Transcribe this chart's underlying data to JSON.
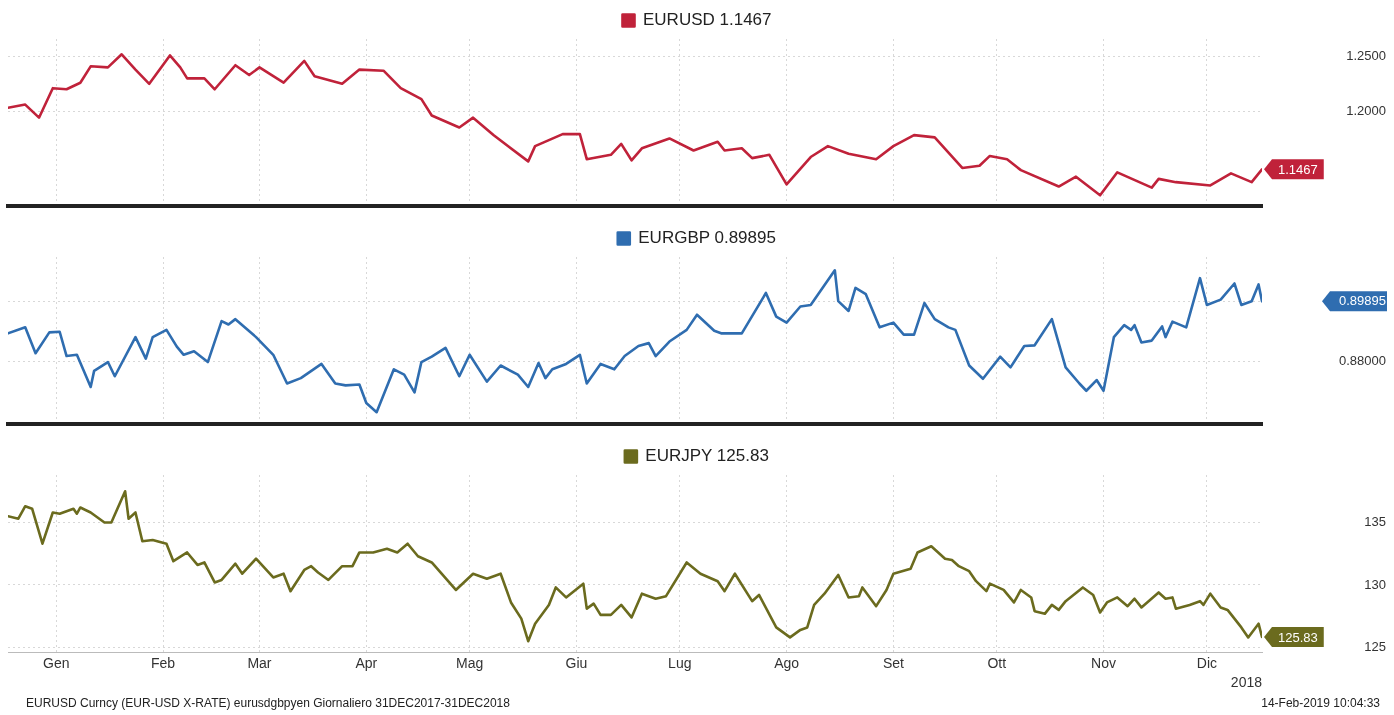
{
  "chart_data": [
    {
      "type": "line",
      "legend": "top",
      "grid": true,
      "tick_labels": "y",
      "x": [
        "2018-01-01",
        "2018-01-06",
        "2018-01-10",
        "2018-01-14",
        "2018-01-18",
        "2018-01-22",
        "2018-01-25",
        "2018-01-30",
        "2018-02-03",
        "2018-02-07",
        "2018-02-11",
        "2018-02-17",
        "2018-02-20",
        "2018-02-22",
        "2018-02-27",
        "2018-03-02",
        "2018-03-08",
        "2018-03-12",
        "2018-03-15",
        "2018-03-22",
        "2018-03-28",
        "2018-03-31",
        "2018-04-08",
        "2018-04-13",
        "2018-04-20",
        "2018-04-25",
        "2018-05-01",
        "2018-05-04",
        "2018-05-12",
        "2018-05-16",
        "2018-05-22",
        "2018-06-01",
        "2018-06-03",
        "2018-06-11",
        "2018-06-16",
        "2018-06-18",
        "2018-06-25",
        "2018-06-28",
        "2018-07-01",
        "2018-07-04",
        "2018-07-12",
        "2018-07-19",
        "2018-07-26",
        "2018-07-28",
        "2018-08-02",
        "2018-08-05",
        "2018-08-10",
        "2018-08-15",
        "2018-08-22",
        "2018-08-27",
        "2018-09-02",
        "2018-09-10",
        "2018-09-15",
        "2018-09-21",
        "2018-09-27",
        "2018-10-05",
        "2018-10-10",
        "2018-10-13",
        "2018-10-18",
        "2018-10-22",
        "2018-11-02",
        "2018-11-07",
        "2018-11-14",
        "2018-11-19",
        "2018-11-29",
        "2018-12-01",
        "2018-12-06",
        "2018-12-16",
        "2018-12-22",
        "2018-12-28",
        "2018-12-31"
      ],
      "series": [
        {
          "name": "EURUSD 1.1467",
          "color": "#c0223a",
          "values": [
            1.203,
            1.206,
            1.194,
            1.221,
            1.22,
            1.226,
            1.241,
            1.24,
            1.252,
            1.238,
            1.225,
            1.251,
            1.24,
            1.23,
            1.23,
            1.22,
            1.242,
            1.233,
            1.24,
            1.226,
            1.246,
            1.232,
            1.225,
            1.238,
            1.237,
            1.221,
            1.211,
            1.196,
            1.185,
            1.194,
            1.178,
            1.154,
            1.168,
            1.179,
            1.179,
            1.156,
            1.16,
            1.17,
            1.155,
            1.166,
            1.175,
            1.164,
            1.172,
            1.164,
            1.166,
            1.157,
            1.16,
            1.133,
            1.158,
            1.168,
            1.161,
            1.156,
            1.168,
            1.178,
            1.176,
            1.148,
            1.15,
            1.159,
            1.156,
            1.146,
            1.131,
            1.14,
            1.123,
            1.144,
            1.13,
            1.138,
            1.135,
            1.132,
            1.143,
            1.135,
            1.1467
          ],
          "value_labels": [
            null,
            null,
            null,
            null,
            null,
            null,
            null,
            null,
            null,
            null,
            null,
            null,
            null,
            null,
            null,
            null,
            null,
            null,
            null,
            null,
            null,
            null,
            null,
            null,
            null,
            null,
            null,
            null,
            null,
            null,
            null,
            null,
            null,
            null,
            null,
            null,
            null,
            null,
            null,
            null,
            null,
            null,
            null,
            null,
            null,
            null,
            null,
            null,
            null,
            null,
            null,
            null,
            null,
            null,
            null,
            null,
            null,
            null,
            null,
            null,
            null,
            null,
            null,
            null,
            null,
            null,
            null,
            null,
            null,
            null,
            "1.1467"
          ]
        }
      ],
      "xlim": [
        "2018-01-01",
        "2018-12-31"
      ],
      "xticks": [
        {
          "value": "2018-01-15",
          "label": null
        },
        {
          "value": "2018-02-15",
          "label": null
        },
        {
          "value": "2018-03-15",
          "label": null
        },
        {
          "value": "2018-04-15",
          "label": null
        },
        {
          "value": "2018-05-15",
          "label": null
        },
        {
          "value": "2018-06-15",
          "label": null
        },
        {
          "value": "2018-07-15",
          "label": null
        },
        {
          "value": "2018-08-15",
          "label": null
        },
        {
          "value": "2018-09-15",
          "label": null
        },
        {
          "value": "2018-10-15",
          "label": null
        },
        {
          "value": "2018-11-15",
          "label": null
        },
        {
          "value": "2018-12-15",
          "label": null
        }
      ],
      "ylim": [
        1.113,
        1.266
      ],
      "yticks": [
        {
          "value": 1.2,
          "label": "1.2000"
        },
        {
          "value": 1.25,
          "label": "1.2500"
        }
      ]
    },
    {
      "type": "line",
      "legend": "top",
      "grid": true,
      "tick_labels": "y",
      "x": [
        "2018-01-01",
        "2018-01-06",
        "2018-01-09",
        "2018-01-13",
        "2018-01-16",
        "2018-01-18",
        "2018-01-21",
        "2018-01-25",
        "2018-01-26",
        "2018-01-30",
        "2018-02-01",
        "2018-02-07",
        "2018-02-10",
        "2018-02-12",
        "2018-02-16",
        "2018-02-19",
        "2018-02-21",
        "2018-02-24",
        "2018-02-28",
        "2018-03-04",
        "2018-03-06",
        "2018-03-08",
        "2018-03-14",
        "2018-03-19",
        "2018-03-23",
        "2018-03-27",
        "2018-04-02",
        "2018-04-06",
        "2018-04-09",
        "2018-04-13",
        "2018-04-15",
        "2018-04-18",
        "2018-04-23",
        "2018-04-26",
        "2018-04-29",
        "2018-05-01",
        "2018-05-04",
        "2018-05-08",
        "2018-05-12",
        "2018-05-15",
        "2018-05-20",
        "2018-05-24",
        "2018-05-29",
        "2018-06-01",
        "2018-06-04",
        "2018-06-06",
        "2018-06-08",
        "2018-06-12",
        "2018-06-16",
        "2018-06-18",
        "2018-06-22",
        "2018-06-26",
        "2018-06-29",
        "2018-07-03",
        "2018-07-06",
        "2018-07-08",
        "2018-07-12",
        "2018-07-17",
        "2018-07-20",
        "2018-07-25",
        "2018-07-27",
        "2018-08-02",
        "2018-08-09",
        "2018-08-12",
        "2018-08-15",
        "2018-08-19",
        "2018-08-22",
        "2018-08-29",
        "2018-08-30",
        "2018-09-02",
        "2018-09-04",
        "2018-09-07",
        "2018-09-11",
        "2018-09-15",
        "2018-09-18",
        "2018-09-21",
        "2018-09-24",
        "2018-09-27",
        "2018-10-01",
        "2018-10-03",
        "2018-10-07",
        "2018-10-11",
        "2018-10-16",
        "2018-10-19",
        "2018-10-23",
        "2018-10-26",
        "2018-10-31",
        "2018-11-04",
        "2018-11-08",
        "2018-11-10",
        "2018-11-13",
        "2018-11-15",
        "2018-11-18",
        "2018-11-21",
        "2018-11-23",
        "2018-11-24",
        "2018-11-26",
        "2018-11-29",
        "2018-12-02",
        "2018-12-03",
        "2018-12-05",
        "2018-12-09",
        "2018-12-13",
        "2018-12-15",
        "2018-12-19",
        "2018-12-23",
        "2018-12-25",
        "2018-12-28",
        "2018-12-30",
        "2018-12-31"
      ],
      "series": [
        {
          "name": "EURGBP 0.89895",
          "color": "#2f6db0",
          "values": [
            0.8888,
            0.8907,
            0.8825,
            0.8891,
            0.8893,
            0.8816,
            0.882,
            0.8718,
            0.8769,
            0.8797,
            0.8752,
            0.8876,
            0.8808,
            0.8876,
            0.8899,
            0.8846,
            0.882,
            0.8831,
            0.8797,
            0.8927,
            0.8916,
            0.8933,
            0.8876,
            0.882,
            0.8729,
            0.8746,
            0.8791,
            0.8729,
            0.8723,
            0.8726,
            0.8667,
            0.8638,
            0.8774,
            0.8757,
            0.8701,
            0.8797,
            0.8814,
            0.8842,
            0.8752,
            0.882,
            0.8735,
            0.8786,
            0.8757,
            0.8718,
            0.8794,
            0.8746,
            0.8774,
            0.8791,
            0.882,
            0.8729,
            0.8791,
            0.8774,
            0.8816,
            0.8848,
            0.8857,
            0.8816,
            0.8862,
            0.8899,
            0.8947,
            0.8896,
            0.8888,
            0.8888,
            0.9016,
            0.8941,
            0.8922,
            0.8973,
            0.8978,
            0.9088,
            0.899,
            0.8959,
            0.9032,
            0.9012,
            0.8907,
            0.8922,
            0.8884,
            0.8884,
            0.8984,
            0.8933,
            0.8907,
            0.8899,
            0.8786,
            0.8744,
            0.8814,
            0.878,
            0.8848,
            0.885,
            0.8933,
            0.878,
            0.8729,
            0.8706,
            0.874,
            0.8706,
            0.8876,
            0.8914,
            0.8899,
            0.8914,
            0.8859,
            0.8865,
            0.891,
            0.8876,
            0.8925,
            0.8907,
            0.9063,
            0.8978,
            0.8995,
            0.9046,
            0.8978,
            0.899,
            0.9043,
            0.89895
          ]
        }
      ],
      "xlim": [
        "2018-01-01",
        "2018-12-31"
      ],
      "xticks": [
        {
          "value": "2018-01-15",
          "label": null
        },
        {
          "value": "2018-02-15",
          "label": null
        },
        {
          "value": "2018-03-15",
          "label": null
        },
        {
          "value": "2018-04-15",
          "label": null
        },
        {
          "value": "2018-05-15",
          "label": null
        },
        {
          "value": "2018-06-15",
          "label": null
        },
        {
          "value": "2018-07-15",
          "label": null
        },
        {
          "value": "2018-08-15",
          "label": null
        },
        {
          "value": "2018-09-15",
          "label": null
        },
        {
          "value": "2018-10-15",
          "label": null
        },
        {
          "value": "2018-11-15",
          "label": null
        },
        {
          "value": "2018-12-15",
          "label": null
        }
      ],
      "ylim": [
        0.86,
        0.913
      ],
      "yticks": [
        {
          "value": 0.88,
          "label": "0.88000"
        },
        {
          "value": 0.89895,
          "label": "0.89895"
        }
      ]
    },
    {
      "type": "line",
      "legend": "top",
      "grid": true,
      "xlabel": "2018",
      "annotations": [
        "EURUSD Curncy (EUR-USD X-RATE) eurusdgbpyen  Giornaliero 31DEC2017-31DEC2018",
        "14-Feb-2019 10:04:33"
      ],
      "x": [
        "2018-01-01",
        "2018-01-04",
        "2018-01-06",
        "2018-01-08",
        "2018-01-11",
        "2018-01-14",
        "2018-01-16",
        "2018-01-20",
        "2018-01-21",
        "2018-01-22",
        "2018-01-25",
        "2018-01-29",
        "2018-01-31",
        "2018-02-04",
        "2018-02-05",
        "2018-02-07",
        "2018-02-09",
        "2018-02-12",
        "2018-02-16",
        "2018-02-18",
        "2018-02-22",
        "2018-02-25",
        "2018-02-27",
        "2018-03-02",
        "2018-03-04",
        "2018-03-08",
        "2018-03-10",
        "2018-03-14",
        "2018-03-19",
        "2018-03-22",
        "2018-03-24",
        "2018-03-28",
        "2018-03-30",
        "2018-04-01",
        "2018-04-04",
        "2018-04-08",
        "2018-04-11",
        "2018-04-13",
        "2018-04-17",
        "2018-04-21",
        "2018-04-24",
        "2018-04-27",
        "2018-04-30",
        "2018-05-04",
        "2018-05-11",
        "2018-05-16",
        "2018-05-20",
        "2018-05-22",
        "2018-05-24",
        "2018-05-27",
        "2018-05-30",
        "2018-06-01",
        "2018-06-03",
        "2018-06-07",
        "2018-06-09",
        "2018-06-12",
        "2018-06-17",
        "2018-06-18",
        "2018-06-20",
        "2018-06-22",
        "2018-06-25",
        "2018-06-28",
        "2018-07-01",
        "2018-07-04",
        "2018-07-08",
        "2018-07-11",
        "2018-07-17",
        "2018-07-21",
        "2018-07-26",
        "2018-07-28",
        "2018-07-31",
        "2018-08-05",
        "2018-08-07",
        "2018-08-12",
        "2018-08-16",
        "2018-08-19",
        "2018-08-21",
        "2018-08-23",
        "2018-08-26",
        "2018-08-30",
        "2018-09-02",
        "2018-09-05",
        "2018-09-06",
        "2018-09-10",
        "2018-09-13",
        "2018-09-15",
        "2018-09-20",
        "2018-09-22",
        "2018-09-26",
        "2018-09-30",
        "2018-10-02",
        "2018-10-04",
        "2018-10-07",
        "2018-10-09",
        "2018-10-12",
        "2018-10-13",
        "2018-10-17",
        "2018-10-20",
        "2018-10-22",
        "2018-10-25",
        "2018-10-26",
        "2018-10-29",
        "2018-10-31",
        "2018-11-02",
        "2018-11-04",
        "2018-11-09",
        "2018-11-12",
        "2018-11-14",
        "2018-11-16",
        "2018-11-19",
        "2018-11-22",
        "2018-11-24",
        "2018-11-26",
        "2018-12-01",
        "2018-12-03",
        "2018-12-05",
        "2018-12-06",
        "2018-12-10",
        "2018-12-13",
        "2018-12-14",
        "2018-12-16",
        "2018-12-19",
        "2018-12-21",
        "2018-12-25",
        "2018-12-27",
        "2018-12-30",
        "2018-12-31"
      ],
      "series": [
        {
          "name": "EURJPY 125.83",
          "color": "#6b6b1e",
          "values": [
            135.5,
            135.3,
            136.3,
            136.1,
            133.3,
            135.8,
            135.7,
            136.1,
            135.7,
            136.2,
            135.8,
            135.0,
            135.0,
            137.5,
            135.3,
            135.8,
            133.5,
            133.6,
            133.3,
            131.9,
            132.6,
            131.6,
            131.8,
            130.2,
            130.4,
            131.7,
            130.9,
            132.1,
            130.6,
            130.9,
            129.5,
            131.2,
            131.5,
            131.0,
            130.4,
            131.5,
            131.5,
            132.6,
            132.6,
            132.9,
            132.6,
            133.3,
            132.3,
            131.8,
            129.6,
            130.9,
            130.5,
            130.7,
            130.9,
            128.6,
            127.3,
            125.5,
            126.9,
            128.4,
            129.8,
            129.0,
            130.1,
            128.1,
            128.5,
            127.6,
            127.6,
            128.4,
            127.4,
            129.3,
            128.9,
            129.1,
            131.8,
            130.9,
            130.3,
            129.5,
            130.9,
            128.7,
            129.2,
            126.6,
            125.8,
            126.4,
            126.6,
            128.4,
            129.3,
            130.8,
            129.0,
            129.1,
            129.8,
            128.3,
            129.6,
            130.9,
            131.3,
            132.6,
            133.1,
            132.1,
            132.0,
            131.5,
            131.1,
            130.3,
            129.5,
            130.1,
            129.6,
            128.6,
            129.6,
            129.0,
            127.9,
            127.7,
            128.4,
            128.0,
            128.7,
            129.8,
            129.2,
            127.8,
            128.6,
            129.0,
            128.3,
            128.9,
            128.2,
            129.4,
            128.9,
            129.0,
            128.1,
            128.4,
            128.7,
            128.4,
            129.3,
            128.2,
            128.0,
            126.6,
            125.8,
            126.9,
            125.83
          ],
          "value_labels": [
            null,
            null,
            null,
            null,
            null,
            null,
            null,
            null,
            null,
            null,
            null,
            null,
            null,
            null,
            null,
            null,
            null,
            null,
            null,
            null,
            null,
            null,
            null,
            null,
            null,
            null,
            null,
            null,
            null,
            null,
            null,
            null,
            null,
            null,
            null,
            null,
            null,
            null,
            null,
            null,
            null,
            null,
            null,
            null,
            null,
            null,
            null,
            null,
            null,
            null,
            null,
            null,
            null,
            null,
            null,
            null,
            null,
            null,
            null,
            null,
            null,
            null,
            null,
            null,
            null,
            null,
            null,
            null,
            null,
            null,
            null,
            null,
            null,
            null,
            null,
            null,
            null,
            null,
            null,
            null,
            null,
            null,
            null,
            null,
            null,
            null,
            null,
            null,
            null,
            null,
            null,
            null,
            null,
            null,
            null,
            null,
            null,
            null,
            null,
            null,
            null,
            null,
            null,
            null,
            null,
            null,
            null,
            null,
            null,
            null,
            null,
            null,
            null,
            null,
            null,
            null,
            null,
            null,
            null,
            null,
            null,
            null,
            null,
            null,
            null,
            null,
            "125.83"
          ]
        }
      ],
      "xlim": [
        "2018-01-01",
        "2018-12-31"
      ],
      "xticks": [
        {
          "value": "2018-01-15",
          "label": "Gen"
        },
        {
          "value": "2018-02-15",
          "label": "Feb"
        },
        {
          "value": "2018-03-15",
          "label": "Mar"
        },
        {
          "value": "2018-04-15",
          "label": "Apr"
        },
        {
          "value": "2018-05-15",
          "label": "Mag"
        },
        {
          "value": "2018-06-15",
          "label": "Giu"
        },
        {
          "value": "2018-07-15",
          "label": "Lug"
        },
        {
          "value": "2018-08-15",
          "label": "Ago"
        },
        {
          "value": "2018-09-15",
          "label": "Set"
        },
        {
          "value": "2018-10-15",
          "label": "Ott"
        },
        {
          "value": "2018-11-15",
          "label": "Nov"
        },
        {
          "value": "2018-12-15",
          "label": "Dic"
        }
      ],
      "ylim": [
        124.6,
        138.8
      ],
      "yticks": [
        125,
        130,
        135
      ]
    }
  ]
}
